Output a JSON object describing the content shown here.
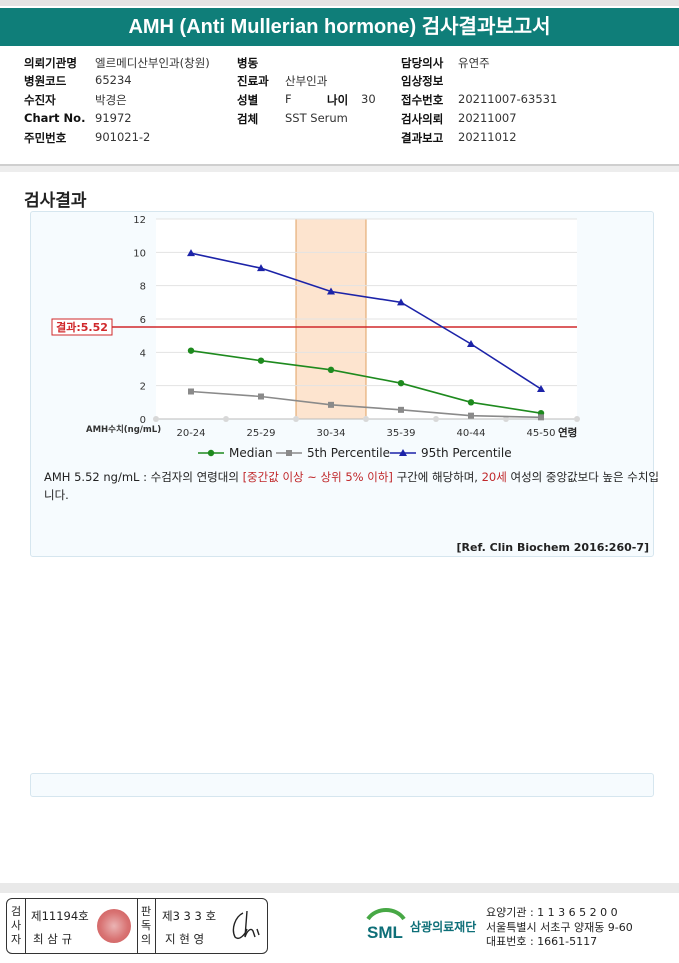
{
  "header": {
    "title": "AMH (Anti Mullerian hormone) 검사결과보고서"
  },
  "info": {
    "rows": [
      {
        "l1": "의뢰기관명",
        "v1": "엘르메디산부인과(창원)",
        "l2": "병동",
        "v2": "",
        "l3": "담당의사",
        "v3": "유연주"
      },
      {
        "l1": "병원코드",
        "v1": "65234",
        "l2": "진료과",
        "v2": "산부인과",
        "l3": "임상정보",
        "v3": ""
      },
      {
        "l1": "수진자",
        "v1": "박경은",
        "l2": "성별",
        "v2": "F",
        "l2b": "나이",
        "v2b": "30",
        "l3": "접수번호",
        "v3": "20211007-63531"
      },
      {
        "l1": "Chart No.",
        "v1": "91972",
        "l2": "검체",
        "v2": "SST Serum",
        "l3": "검사의뢰",
        "v3": "20211007"
      },
      {
        "l1": "주민번호",
        "v1": "901021-2",
        "l2": "",
        "v2": "",
        "l3": "결과보고",
        "v3": "20211012"
      }
    ]
  },
  "section_title": "검사결과",
  "chart_data": {
    "type": "line",
    "categories": [
      "20-24",
      "25-29",
      "30-34",
      "35-39",
      "40-44",
      "45-50"
    ],
    "x_axis_suffix": "연령",
    "y_axis_caption": "AMH수치(ng/mL)",
    "ylim": [
      0,
      12
    ],
    "yticks": [
      0,
      2,
      4,
      6,
      8,
      10,
      12
    ],
    "grid": true,
    "legend_position": "bottom",
    "highlight_category": "30-34",
    "result_line": {
      "label": "결과:5.52",
      "value": 5.52,
      "color": "#d0282b"
    },
    "series": [
      {
        "name": "Median",
        "values": [
          4.1,
          3.5,
          2.95,
          2.15,
          1.0,
          0.35
        ],
        "color": "#1e8a1e",
        "marker": "circle"
      },
      {
        "name": "5th Percentile",
        "values": [
          1.65,
          1.35,
          0.85,
          0.55,
          0.2,
          0.1
        ],
        "color": "#8a8a8a",
        "marker": "square"
      },
      {
        "name": "95th Percentile",
        "values": [
          9.95,
          9.05,
          7.65,
          7.0,
          4.5,
          1.8
        ],
        "color": "#1c23a8",
        "marker": "triangle"
      }
    ]
  },
  "result_text": {
    "part1": "AMH  5.52 ng/mL : 수검자의 연령대의 ",
    "red1": "[중간값 이상 ~ 상위 5% 이하]",
    "part2": " 구간에 해당하며, ",
    "red2": "20세",
    "part3": " 여성의 중앙값보다 높은 수치입니다."
  },
  "reference": "[Ref. Clin Biochem 2016:260-7]",
  "footer": {
    "inspector_label": "검사자",
    "inspector_no": "제11194호",
    "inspector_name": "최 삼 규",
    "doctor_label": "판독의",
    "doctor_no": "제3 3 3 호",
    "doctor_name": "지 현 영",
    "logo_text": "SML",
    "org_name": "삼광의료재단",
    "org_code": "요양기관 : 1 1 3 6 5 2 0 0",
    "org_address": "서울특별시 서초구 양재동 9-60",
    "org_phone": "대표번호 : 1661-5117",
    "colors": {
      "teal": "#0f7e79",
      "logo_blue": "#0e6f78",
      "logo_green": "#47a845"
    }
  }
}
